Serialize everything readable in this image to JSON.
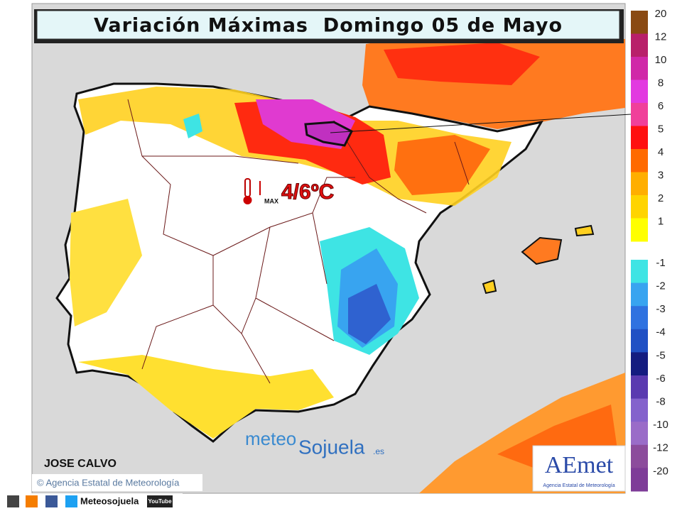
{
  "header": {
    "title": "Variación Máximas  Domingo 05 de Mayo"
  },
  "legend": {
    "positive": [
      {
        "label": 20,
        "color": "#8a4a12"
      },
      {
        "label": 12,
        "color": "#b8206a"
      },
      {
        "label": 10,
        "color": "#d028a8"
      },
      {
        "label": 8,
        "color": "#e23ae0"
      },
      {
        "label": 6,
        "color": "#f0409a"
      },
      {
        "label": 5,
        "color": "#ff1010"
      },
      {
        "label": 4,
        "color": "#ff6a00"
      },
      {
        "label": 3,
        "color": "#ffae00"
      },
      {
        "label": 2,
        "color": "#ffd400"
      },
      {
        "label": 1,
        "color": "#ffff00"
      }
    ],
    "negative": [
      {
        "label": -1,
        "color": "#3ee4e4"
      },
      {
        "label": -2,
        "color": "#38a4f0"
      },
      {
        "label": -3,
        "color": "#2f72e0"
      },
      {
        "label": -4,
        "color": "#2050c4"
      },
      {
        "label": -5,
        "color": "#141c80"
      },
      {
        "label": -6,
        "color": "#5a3ab0"
      },
      {
        "label": -8,
        "color": "#8462cc"
      },
      {
        "label": -10,
        "color": "#9a6cc8"
      },
      {
        "label": -12,
        "color": "#8c4c9c"
      },
      {
        "label": -20,
        "color": "#7e3c98"
      }
    ]
  },
  "annotation": {
    "value": "4/6ºC",
    "icon_label": "MAX"
  },
  "credits": {
    "author": "JOSE CALVO",
    "copyright": "© Agencia Estatal de Meteorología"
  },
  "logos": {
    "meteo": "meteo",
    "sojuela": "Sojuela",
    "domain": ".es",
    "aemet": "AEmet",
    "aemet_caption": "Agencia Estatal de Meteorología"
  },
  "footer": {
    "name": "Meteosojuela",
    "youtube": "YouTube"
  }
}
